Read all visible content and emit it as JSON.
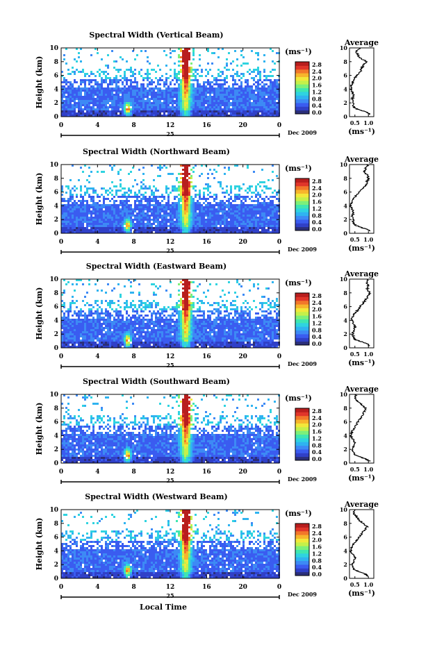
{
  "colorbar": {
    "unit": "(ms⁻¹)",
    "ticks": [
      "0.0",
      "0.4",
      "0.8",
      "1.2",
      "1.6",
      "2.0",
      "2.4",
      "2.8"
    ],
    "range": [
      0,
      2.8
    ],
    "colors": [
      "#2b2f7a",
      "#3040c8",
      "#3a5cf0",
      "#3d8af5",
      "#2fb3f0",
      "#2fd3e0",
      "#3fe6b0",
      "#7cf07a",
      "#c5f04a",
      "#f2e83a",
      "#f7b52c",
      "#f2772a",
      "#e0352a",
      "#b81e1e"
    ]
  },
  "average_panel": {
    "title": "Average",
    "unit": "(ms⁻¹)",
    "xticks": [
      "0.5",
      "1.0"
    ],
    "xlim": [
      0.3,
      1.2
    ]
  },
  "xaxis": {
    "ticks": [
      "0",
      "4",
      "8",
      "12",
      "16",
      "20",
      "0"
    ],
    "day": "25",
    "month_year": "Dec 2009",
    "label": "Local Time"
  },
  "yaxis": {
    "label": "Height (km)",
    "ticks": [
      "0",
      "2",
      "4",
      "6",
      "8",
      "10"
    ]
  },
  "chart_data": [
    {
      "type": "heatmap",
      "title": "Spectral Width (Vertical Beam)",
      "xlabel": "",
      "ylabel": "Height (km)",
      "xlim": [
        0,
        24
      ],
      "ylim": [
        0,
        10
      ],
      "average_profile": {
        "height": [
          0.3,
          0.6,
          0.9,
          1.2,
          1.5,
          2,
          2.5,
          3,
          3.5,
          4,
          4.5,
          5,
          5.5,
          6,
          6.5,
          7,
          7.5,
          8,
          8.5,
          9,
          9.5,
          10
        ],
        "value": [
          1.05,
          0.95,
          0.75,
          0.5,
          0.45,
          0.42,
          0.4,
          0.45,
          0.42,
          0.35,
          0.38,
          0.42,
          0.48,
          0.55,
          0.7,
          0.75,
          0.8,
          0.95,
          0.7,
          0.6,
          0.55,
          0.7
        ]
      }
    },
    {
      "type": "heatmap",
      "title": "Spectral Width (Northward Beam)",
      "xlabel": "",
      "ylabel": "Height (km)",
      "xlim": [
        0,
        24
      ],
      "ylim": [
        0,
        10
      ],
      "average_profile": {
        "height": [
          0.3,
          0.6,
          0.9,
          1.2,
          1.5,
          2,
          2.5,
          3,
          3.5,
          4,
          4.5,
          5,
          5.5,
          6,
          6.5,
          7,
          7.5,
          8,
          8.5,
          9,
          9.5,
          10
        ],
        "value": [
          1.1,
          0.95,
          0.7,
          0.5,
          0.45,
          0.42,
          0.4,
          0.45,
          0.4,
          0.35,
          0.38,
          0.45,
          0.55,
          0.65,
          0.8,
          0.9,
          0.95,
          1.0,
          0.95,
          0.85,
          0.9,
          1.0
        ]
      }
    },
    {
      "type": "heatmap",
      "title": "Spectral Width (Eastward Beam)",
      "xlabel": "",
      "ylabel": "Height (km)",
      "xlim": [
        0,
        24
      ],
      "ylim": [
        0,
        10
      ],
      "average_profile": {
        "height": [
          0.3,
          0.6,
          0.9,
          1.2,
          1.5,
          2,
          2.5,
          3,
          3.5,
          4,
          4.5,
          5,
          5.5,
          6,
          6.5,
          7,
          7.5,
          8,
          8.5,
          9,
          9.5,
          10
        ],
        "value": [
          1.05,
          0.95,
          0.75,
          0.5,
          0.45,
          0.42,
          0.45,
          0.5,
          0.45,
          0.38,
          0.4,
          0.5,
          0.6,
          0.7,
          0.8,
          0.9,
          1.0,
          1.05,
          0.95,
          1.0,
          0.95,
          1.0
        ]
      }
    },
    {
      "type": "heatmap",
      "title": "Spectral Width (Southward Beam)",
      "xlabel": "",
      "ylabel": "Height (km)",
      "xlim": [
        0,
        24
      ],
      "ylim": [
        0,
        10
      ],
      "average_profile": {
        "height": [
          0.3,
          0.6,
          0.9,
          1.2,
          1.5,
          2,
          2.5,
          3,
          3.5,
          4,
          4.5,
          5,
          5.5,
          6,
          6.5,
          7,
          7.5,
          8,
          8.5,
          9,
          9.5,
          10
        ],
        "value": [
          1.05,
          0.9,
          0.7,
          0.5,
          0.45,
          0.42,
          0.45,
          0.5,
          0.42,
          0.35,
          0.38,
          0.45,
          0.55,
          0.6,
          0.7,
          0.8,
          0.85,
          0.9,
          0.75,
          0.6,
          0.5,
          0.55
        ]
      }
    },
    {
      "type": "heatmap",
      "title": "Spectral Width (Westward Beam)",
      "xlabel": "",
      "ylabel": "Height (km)",
      "xlim": [
        0,
        24
      ],
      "ylim": [
        0,
        10
      ],
      "average_profile": {
        "height": [
          0.3,
          0.6,
          0.9,
          1.2,
          1.5,
          2,
          2.5,
          3,
          3.5,
          4,
          4.5,
          5,
          5.5,
          6,
          6.5,
          7,
          7.5,
          8,
          8.5,
          9,
          9.5,
          10
        ],
        "value": [
          1.0,
          0.9,
          0.7,
          0.5,
          0.45,
          0.42,
          0.45,
          0.5,
          0.42,
          0.35,
          0.38,
          0.45,
          0.55,
          0.65,
          0.75,
          0.85,
          0.95,
          0.8,
          0.65,
          0.55,
          0.45,
          0.5
        ]
      }
    }
  ]
}
